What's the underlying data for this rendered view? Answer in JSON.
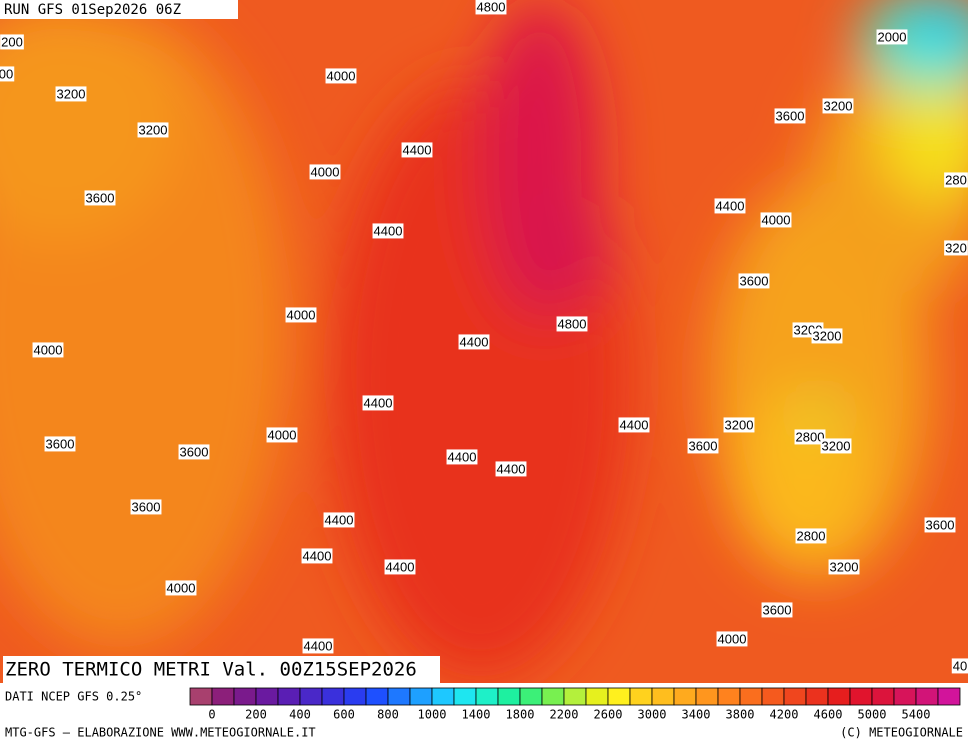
{
  "header": {
    "run": "RUN GFS 01Sep2026 06Z"
  },
  "map": {
    "title": "ZERO TERMICO METRI Val. 00Z15SEP2026",
    "contour_labels": [
      "4800",
      "2000",
      "200",
      "00",
      "4000",
      "3200",
      "3200",
      "3600",
      "3200",
      "4400",
      "4000",
      "280",
      "3600",
      "4400",
      "4000",
      "4400",
      "320",
      "3600",
      "4000",
      "4800",
      "3200",
      "3200",
      "4400",
      "4000",
      "4400",
      "4400",
      "3200",
      "4000",
      "2800",
      "3200",
      "3600",
      "3600",
      "3600",
      "4400",
      "4400",
      "3600",
      "4400",
      "3600",
      "2800",
      "4400",
      "4400",
      "3200",
      "4000",
      "3600",
      "4000",
      "4400",
      "40"
    ]
  },
  "legend": {
    "source": "DATI NCEP GFS 0.25°",
    "colors": [
      "#a8406e",
      "#8c1f7a",
      "#7a1a8c",
      "#6a1aa0",
      "#5a1eb4",
      "#4a28c8",
      "#3a30dc",
      "#2a3cf0",
      "#1e50ff",
      "#1e78ff",
      "#1ea0ff",
      "#1ec8ff",
      "#1ee6f0",
      "#1ef0c8",
      "#1ef0a0",
      "#3cf078",
      "#78f050",
      "#b4f03c",
      "#e6f01e",
      "#fff01e",
      "#ffd21e",
      "#ffbe1e",
      "#ffaa1e",
      "#ff961e",
      "#ff821e",
      "#fa6e1e",
      "#f55a1e",
      "#f0461e",
      "#eb321e",
      "#e61e1e",
      "#e1142d",
      "#dc143c",
      "#d7145a",
      "#d21478",
      "#d2149b"
    ],
    "ticks": [
      0,
      200,
      400,
      600,
      800,
      1000,
      1400,
      1800,
      2200,
      2600,
      3000,
      3400,
      3800,
      4200,
      4600,
      5000,
      5400
    ]
  },
  "footer": {
    "left": "MTG-GFS — ELABORAZIONE WWW.METEOGIORNALE.IT",
    "right": "(C) METEOGIORNALE"
  }
}
